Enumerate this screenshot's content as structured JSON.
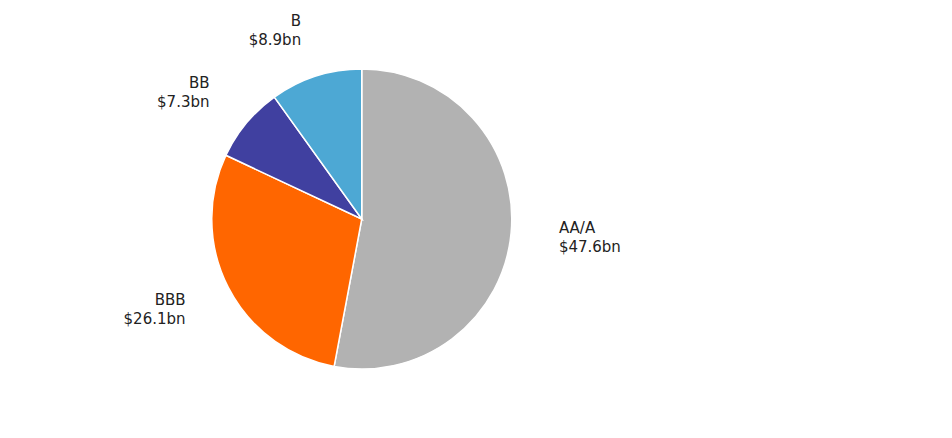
{
  "chart_data": {
    "type": "pie",
    "categories": [
      "AA/A",
      "BBB",
      "BB",
      "B"
    ],
    "values": [
      47.6,
      26.1,
      7.3,
      8.9
    ],
    "value_labels": [
      "$47.6bn",
      "$26.1bn",
      "$7.3bn",
      "$8.9bn"
    ],
    "colors": [
      "#b2b2b2",
      "#ff6600",
      "#4040a0",
      "#4da8d4"
    ],
    "data_labels": true
  }
}
